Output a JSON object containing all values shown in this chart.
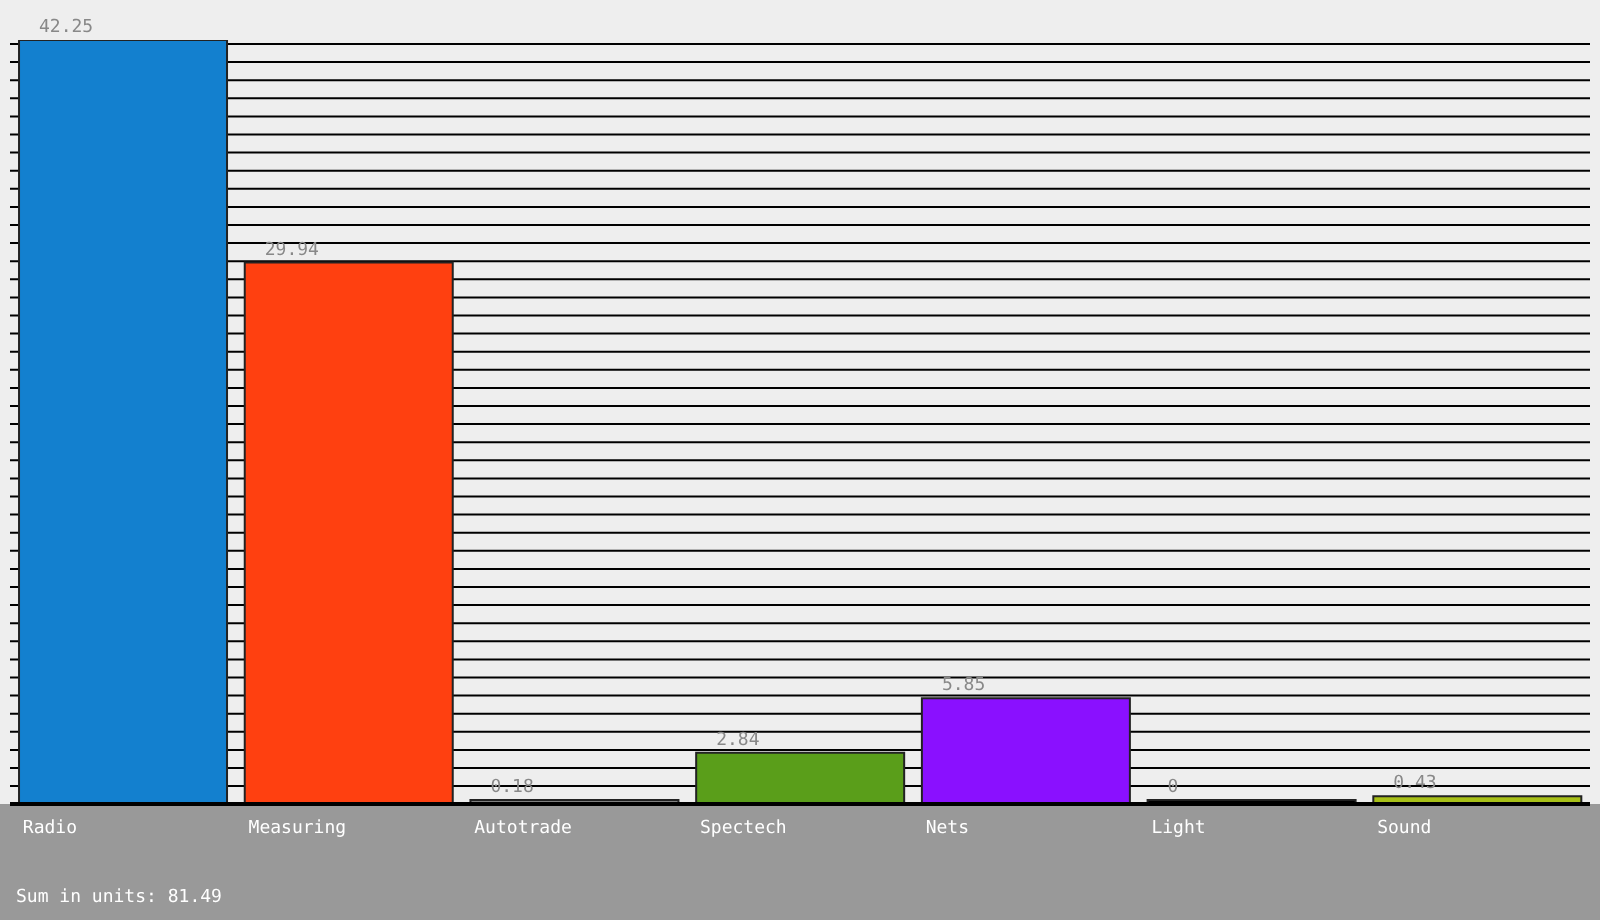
{
  "chart_data": {
    "type": "bar",
    "categories": [
      "Radio",
      "Measuring",
      "Autotrade",
      "Spectech",
      "Nets",
      "Light",
      "Sound"
    ],
    "values": [
      42.25,
      29.94,
      0.18,
      2.84,
      5.85,
      0,
      0.43
    ],
    "colors": [
      "#1380cf",
      "#ff4010",
      "#808080",
      "#5a9e1a",
      "#8a10ff",
      "#000000",
      "#a8c018"
    ],
    "data_labels": true,
    "grid": "y",
    "tick_labels": "x",
    "annotations": [
      "Sum in units: 81.49"
    ]
  }
}
